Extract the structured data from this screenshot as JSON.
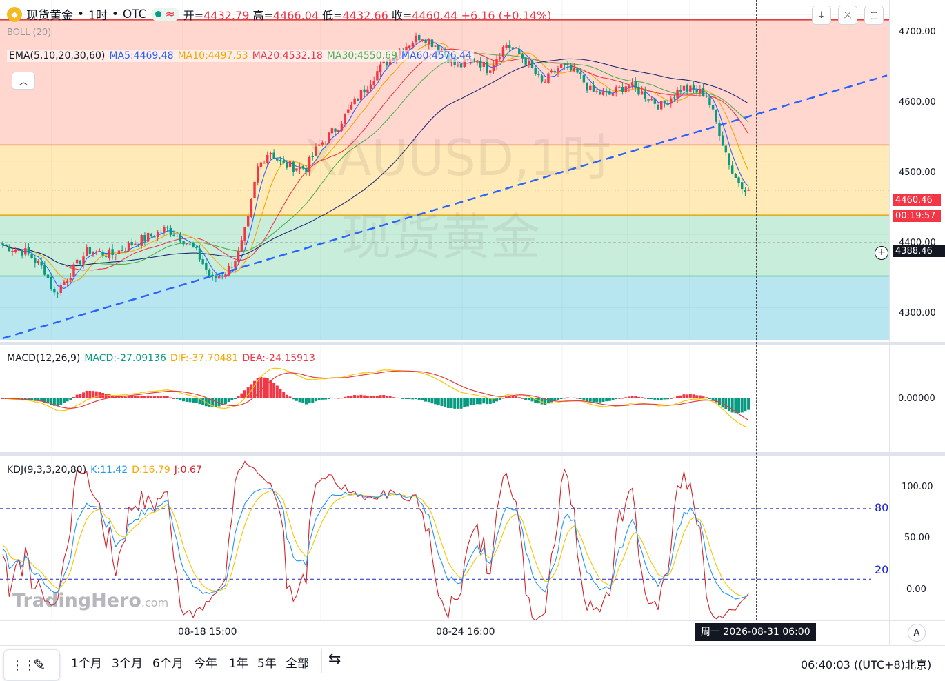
{
  "header": {
    "symbol_name": "现货黄金",
    "interval": "1时",
    "exchange": "OTC",
    "open_label": "开=",
    "open": "4432.79",
    "high_label": "高=",
    "high": "4466.04",
    "low_label": "低=",
    "low": "4432.66",
    "close_label": "收=",
    "close": "4460.44",
    "change": "+6.16 (+0.14%)"
  },
  "indicators": {
    "boll": "BOLL (20)",
    "ema_name": "EMA(5,10,20,30,60)",
    "ma5": "MA5:4469.48",
    "ma10": "MA10:4497.53",
    "ma20": "MA20:4532.18",
    "ma30": "MA30:4550.69",
    "ma60": "MA60:4576.44",
    "macd_name": "MACD(12,26,9)",
    "macd_val": "MACD:-27.09136",
    "dif_val": "DIF:-37.70481",
    "dea_val": "DEA:-24.15913",
    "kdj_name": "KDJ(9,3,3,20,80)",
    "k_val": "K:11.42",
    "d_val": "D:16.79",
    "j_val": "J:0.67"
  },
  "watermark": {
    "line1": "XAUUSD,1时",
    "line2": "现货黄金"
  },
  "price_axis": {
    "ticks": [
      "4700.00",
      "4600.00",
      "4500.00",
      "4400.00",
      "4300.00"
    ]
  },
  "price_badges": {
    "last": "4460.46",
    "countdown": "00:19:57",
    "crosshair": "4388.46"
  },
  "macd_axis": {
    "ticks": [
      "0.00000"
    ]
  },
  "kdj_axis": {
    "ticks": [
      "100.00",
      "50.00",
      "0.00"
    ],
    "level80": "80",
    "level20": "20"
  },
  "time_axis": {
    "ticks": [
      "08-18 15:00",
      "08-24 16:00"
    ],
    "crosshair_time": "周一 2026-08-31  06:00"
  },
  "ranges": [
    "1个月",
    "3个月",
    "6个月",
    "今年",
    "1年",
    "5年",
    "全部"
  ],
  "clock": "06:40:03 ((UTC+8)北京)",
  "branding": {
    "name": "TradingHero",
    "suffix": ".com"
  },
  "colors": {
    "up": "#f23645",
    "down": "#089981",
    "ma5": "#2962ff",
    "ma10": "#f7a600",
    "ma20": "#f23645",
    "ma30": "#4caf50",
    "ma60": "#1e2a78",
    "zone_red": "#ffd7cf",
    "zone_yellow": "#ffeab8",
    "zone_green": "#c8eedb",
    "zone_blue": "#b8e6f0",
    "k": "#2196f3",
    "d": "#f7c600",
    "j": "#d2232a"
  },
  "chart_data": {
    "type": "candlestick",
    "title": "现货黄金 · 1时 · OTC",
    "ylim": [
      4255,
      4720
    ],
    "levels": {
      "top": 4693,
      "upper_mid": 4522,
      "mid": 4426,
      "lower": 4343,
      "crosshair": 4388.46,
      "last": 4460.46
    },
    "trendline": [
      [
        0,
        4258
      ],
      [
        1,
        4617
      ]
    ],
    "waypoints": [
      [
        0,
        4385
      ],
      [
        0.04,
        4375
      ],
      [
        0.07,
        4350
      ],
      [
        0.085,
        4318
      ],
      [
        0.11,
        4345
      ],
      [
        0.14,
        4378
      ],
      [
        0.18,
        4372
      ],
      [
        0.22,
        4390
      ],
      [
        0.25,
        4400
      ],
      [
        0.27,
        4408
      ],
      [
        0.3,
        4392
      ],
      [
        0.32,
        4375
      ],
      [
        0.345,
        4338
      ],
      [
        0.37,
        4350
      ],
      [
        0.39,
        4375
      ],
      [
        0.405,
        4420
      ],
      [
        0.42,
        4490
      ],
      [
        0.44,
        4515
      ],
      [
        0.46,
        4495
      ],
      [
        0.5,
        4490
      ],
      [
        0.52,
        4520
      ],
      [
        0.55,
        4545
      ],
      [
        0.58,
        4580
      ],
      [
        0.62,
        4625
      ],
      [
        0.66,
        4655
      ],
      [
        0.69,
        4672
      ],
      [
        0.72,
        4655
      ],
      [
        0.75,
        4628
      ],
      [
        0.78,
        4640
      ],
      [
        0.8,
        4625
      ],
      [
        0.83,
        4660
      ],
      [
        0.86,
        4640
      ],
      [
        0.89,
        4605
      ],
      [
        0.92,
        4630
      ],
      [
        0.95,
        4618
      ],
      [
        0.97,
        4595
      ],
      [
        1.0,
        4590
      ],
      [
        1.03,
        4605
      ],
      [
        1.06,
        4590
      ],
      [
        1.085,
        4575
      ],
      [
        1.12,
        4600
      ],
      [
        1.16,
        4592
      ],
      [
        1.18,
        4545
      ],
      [
        1.205,
        4480
      ],
      [
        1.23,
        4460
      ]
    ],
    "macd_ylim": [
      -65,
      65
    ],
    "kdj_ylim": [
      -15,
      125
    ]
  }
}
